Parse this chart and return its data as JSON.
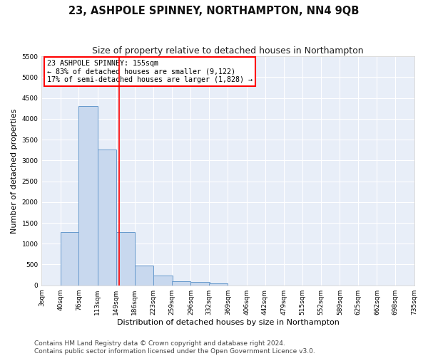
{
  "title": "23, ASHPOLE SPINNEY, NORTHAMPTON, NN4 9QB",
  "subtitle": "Size of property relative to detached houses in Northampton",
  "xlabel": "Distribution of detached houses by size in Northampton",
  "ylabel": "Number of detached properties",
  "bar_left_edges": [
    3,
    40,
    76,
    113,
    149,
    186,
    223,
    259,
    296,
    332,
    369,
    406,
    442,
    479,
    515,
    552,
    589,
    625,
    662,
    698
  ],
  "bar_heights": [
    0,
    1270,
    4310,
    3270,
    1270,
    480,
    230,
    95,
    75,
    50,
    0,
    0,
    0,
    0,
    0,
    0,
    0,
    0,
    0,
    0
  ],
  "bin_width": 37,
  "bar_color": "#c8d8ee",
  "bar_edge_color": "#6699cc",
  "vline_x": 155,
  "vline_color": "red",
  "ylim": [
    0,
    5500
  ],
  "yticks": [
    0,
    500,
    1000,
    1500,
    2000,
    2500,
    3000,
    3500,
    4000,
    4500,
    5000,
    5500
  ],
  "xtick_labels": [
    "3sqm",
    "40sqm",
    "76sqm",
    "113sqm",
    "149sqm",
    "186sqm",
    "223sqm",
    "259sqm",
    "296sqm",
    "332sqm",
    "369sqm",
    "406sqm",
    "442sqm",
    "479sqm",
    "515sqm",
    "552sqm",
    "589sqm",
    "625sqm",
    "662sqm",
    "698sqm",
    "735sqm"
  ],
  "xtick_positions": [
    3,
    40,
    76,
    113,
    149,
    186,
    223,
    259,
    296,
    332,
    369,
    406,
    442,
    479,
    515,
    552,
    589,
    625,
    662,
    698,
    735
  ],
  "annotation_title": "23 ASHPOLE SPINNEY: 155sqm",
  "annotation_line1": "← 83% of detached houses are smaller (9,122)",
  "annotation_line2": "17% of semi-detached houses are larger (1,828) →",
  "annotation_box_color": "#ffffff",
  "annotation_box_edge": "red",
  "footer_line1": "Contains HM Land Registry data © Crown copyright and database right 2024.",
  "footer_line2": "Contains public sector information licensed under the Open Government Licence v3.0.",
  "background_color": "#ffffff",
  "plot_bg_color": "#e8eef8",
  "grid_color": "#ffffff",
  "title_fontsize": 10.5,
  "subtitle_fontsize": 9,
  "axis_label_fontsize": 8,
  "tick_fontsize": 6.5,
  "footer_fontsize": 6.5
}
